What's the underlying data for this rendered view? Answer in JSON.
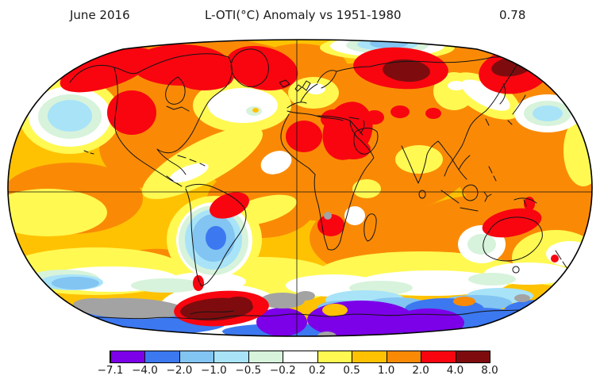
{
  "header": {
    "date_label": "June 2016",
    "title": "L-OTI(°C) Anomaly vs 1951-1980",
    "mean_anomaly": "0.78"
  },
  "colorbar": {
    "tick_labels": [
      "−7.1",
      "−4.0",
      "−2.0",
      "−1.0",
      "−0.5",
      "−0.2",
      "0.2",
      "0.5",
      "1.0",
      "2.0",
      "4.0",
      "8.0"
    ],
    "colors": [
      "#7c00e8",
      "#3c78f0",
      "#82c4f2",
      "#a8e3f8",
      "#d7f3db",
      "#ffffff",
      "#fff952",
      "#ffc203",
      "#fa8a06",
      "#f80510",
      "#7e0c0e"
    ],
    "no_data_color": "#a3a3a3"
  },
  "chart_data": {
    "type": "heatmap",
    "subtype": "global-temperature-anomaly-map",
    "title": "L-OTI(°C) Anomaly vs 1951-1980",
    "period": "June 2016",
    "baseline": "1951-1980",
    "global_mean_anomaly_c": 0.78,
    "units": "°C",
    "projection": "robinson",
    "gridlines": [
      "equator",
      "prime-meridian"
    ],
    "legend_position": "bottom",
    "colorbar_boundaries_c": [
      -7.1,
      -4.0,
      -2.0,
      -1.0,
      -0.5,
      -0.2,
      0.2,
      0.5,
      1.0,
      2.0,
      4.0,
      8.0
    ],
    "colorbar_colors": [
      "#7c00e8",
      "#3c78f0",
      "#82c4f2",
      "#a8e3f8",
      "#d7f3db",
      "#ffffff",
      "#fff952",
      "#ffc203",
      "#fa8a06",
      "#f80510",
      "#7e0c0e"
    ],
    "no_data_color": "#a3a3a3",
    "regional_anomalies": [
      {
        "region": "Western Siberia",
        "anomaly_c": "4.0 to 8.0"
      },
      {
        "region": "Eastern Siberia / Chukotka",
        "anomaly_c": "4.0 to 8.0"
      },
      {
        "region": "Antarctic Peninsula / Weddell Sea",
        "anomaly_c": "4.0 to 8.0"
      },
      {
        "region": "Alaska and northwestern Canada",
        "anomaly_c": "2.0 to 4.0"
      },
      {
        "region": "Canadian Arctic Archipelago",
        "anomaly_c": "2.0 to 4.0"
      },
      {
        "region": "Greenland",
        "anomaly_c": "2.0 to 4.0"
      },
      {
        "region": "Western United States",
        "anomaly_c": "2.0 to 4.0"
      },
      {
        "region": "Eastern Europe / Middle East",
        "anomaly_c": "2.0 to 4.0"
      },
      {
        "region": "Central Brazil",
        "anomaly_c": "2.0 to 4.0"
      },
      {
        "region": "Southern Africa",
        "anomaly_c": "2.0 to 4.0"
      },
      {
        "region": "Northern Australia / New Guinea",
        "anomaly_c": "2.0 to 4.0"
      },
      {
        "region": "Most oceans and low latitudes",
        "anomaly_c": "0.5 to 2.0"
      },
      {
        "region": "North Atlantic south of Greenland",
        "anomaly_c": "-0.2 to 0.2"
      },
      {
        "region": "Northeast Pacific",
        "anomaly_c": "-1.0 to -0.5"
      },
      {
        "region": "Northwest Pacific east of Japan",
        "anomaly_c": "-1.0 to -0.5"
      },
      {
        "region": "West of Australia",
        "anomaly_c": "-0.5 to -0.2"
      },
      {
        "region": "Argentina / southern South America",
        "anomaly_c": "-4.0 to -1.0"
      },
      {
        "region": "Arctic Ocean near pole",
        "anomaly_c": "-2.0 to -0.5"
      },
      {
        "region": "Southern Ocean ring",
        "anomaly_c": "-0.5 to 0.5"
      },
      {
        "region": "East Antarctica",
        "anomaly_c": "-7.1 to -4.0"
      },
      {
        "region": "Parts of Antarctic coast",
        "anomaly_c": "no data (gray)"
      }
    ]
  }
}
